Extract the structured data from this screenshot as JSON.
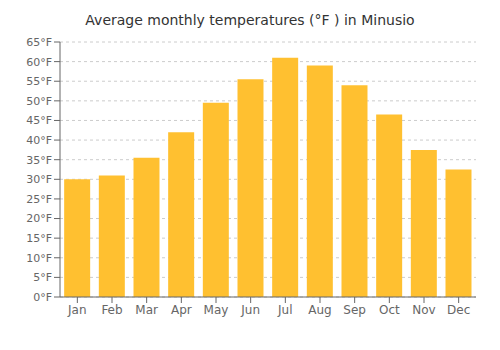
{
  "chart_data": {
    "type": "bar",
    "title": "Average monthly temperatures (°F ) in Minusio",
    "categories": [
      "Jan",
      "Feb",
      "Mar",
      "Apr",
      "May",
      "Jun",
      "Jul",
      "Aug",
      "Sep",
      "Oct",
      "Nov",
      "Dec"
    ],
    "values": [
      30,
      31,
      35.5,
      42,
      49.5,
      55.5,
      61,
      59,
      54,
      46.5,
      37.5,
      32.5
    ],
    "color": "#FFC030",
    "ylim": [
      0,
      65
    ],
    "yticks": [
      {
        "value": 0,
        "label": "0°F"
      },
      {
        "value": 5,
        "label": "5°F"
      },
      {
        "value": 10,
        "label": "10°F"
      },
      {
        "value": 15,
        "label": "15°F"
      },
      {
        "value": 20,
        "label": "20°F"
      },
      {
        "value": 25,
        "label": "25°F"
      },
      {
        "value": 30,
        "label": "30°F"
      },
      {
        "value": 35,
        "label": "35°F"
      },
      {
        "value": 40,
        "label": "40°F"
      },
      {
        "value": 45,
        "label": "45°F"
      },
      {
        "value": 50,
        "label": "50°F"
      },
      {
        "value": 55,
        "label": "55°F"
      },
      {
        "value": 60,
        "label": "60°F"
      },
      {
        "value": 65,
        "label": "65°F"
      }
    ],
    "grid": true
  }
}
